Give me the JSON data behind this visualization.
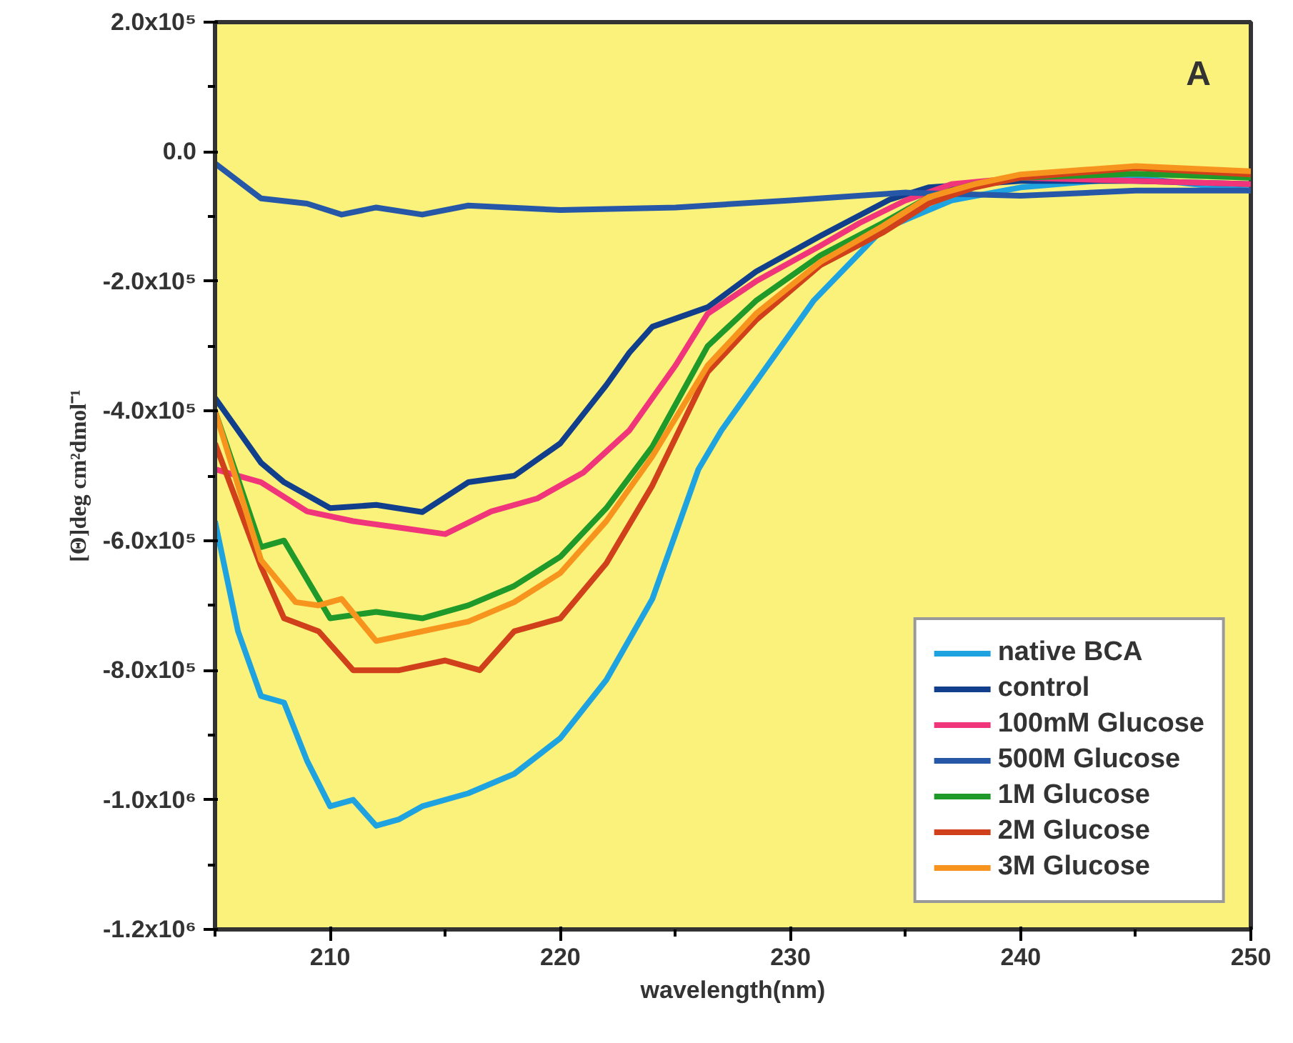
{
  "chart_data": {
    "type": "line",
    "xlabel": "wavelength(nm)",
    "ylabel": "[Θ]deg cm²dmol⁻¹",
    "annotations": [
      "A"
    ],
    "xlim": [
      205,
      250
    ],
    "ylim": [
      -1200000,
      200000
    ],
    "xticks": [
      210,
      220,
      230,
      240,
      250
    ],
    "yticks": [
      {
        "value": 200000,
        "label": "2.0x10⁵"
      },
      {
        "value": 0,
        "label": "0.0"
      },
      {
        "value": -200000,
        "label": "-2.0x10⁵"
      },
      {
        "value": -400000,
        "label": "-4.0x10⁵"
      },
      {
        "value": -600000,
        "label": "-6.0x10⁵"
      },
      {
        "value": -800000,
        "label": "-8.0x10⁵"
      },
      {
        "value": -1000000,
        "label": "-1.0x10⁶"
      },
      {
        "value": -1200000,
        "label": "-1.2x10⁶"
      }
    ],
    "grid": false,
    "legend": "bottom right",
    "marker": "none",
    "line_style": "solid",
    "series": [
      {
        "name": "native BCA",
        "color": "#1fa3e0",
        "x": [
          205,
          206,
          207,
          208,
          209,
          210,
          211,
          212,
          213,
          214,
          216,
          218,
          220,
          222,
          224,
          225,
          226,
          227,
          228,
          229,
          231,
          234,
          237,
          240,
          245,
          250
        ],
        "values": [
          -570000,
          -740000,
          -840000,
          -850000,
          -940000,
          -1010000,
          -1000000,
          -1040000,
          -1030000,
          -1010000,
          -990000,
          -960000,
          -905000,
          -815000,
          -690000,
          -590000,
          -490000,
          -430000,
          -380000,
          -330000,
          -230000,
          -120000,
          -75000,
          -55000,
          -40000,
          -60000
        ]
      },
      {
        "name": "control",
        "color": "#123f8c",
        "x": [
          205,
          207,
          208,
          210,
          212,
          214,
          216,
          218,
          220,
          222,
          223,
          224,
          226.4,
          228.5,
          231.3,
          234.3,
          236,
          238,
          240,
          245,
          250
        ],
        "values": [
          -380000,
          -480000,
          -510000,
          -550000,
          -545000,
          -556000,
          -510000,
          -500000,
          -450000,
          -360000,
          -310000,
          -270000,
          -240000,
          -185000,
          -130000,
          -74000,
          -55000,
          -50000,
          -45000,
          -45000,
          -50000
        ]
      },
      {
        "name": "100mM Glucose",
        "color": "#f0357a",
        "x": [
          205,
          207,
          209,
          211,
          213,
          215,
          217,
          219,
          221,
          223,
          225,
          226.4,
          228.5,
          231.3,
          233,
          235,
          237,
          240,
          245,
          250
        ],
        "values": [
          -490000,
          -510000,
          -555000,
          -570000,
          -580000,
          -590000,
          -555000,
          -535000,
          -495000,
          -430000,
          -330000,
          -250000,
          -200000,
          -145000,
          -110000,
          -75000,
          -50000,
          -40000,
          -45000,
          -50000
        ]
      },
      {
        "name": "500M Glucose",
        "color": "#2758a8",
        "x": [
          205,
          207,
          209,
          210.5,
          212,
          214,
          216,
          220,
          225,
          230,
          235,
          240,
          245,
          250
        ],
        "values": [
          -18000,
          -72000,
          -80000,
          -97000,
          -86000,
          -97000,
          -83000,
          -90000,
          -86000,
          -75000,
          -63000,
          -68000,
          -60000,
          -60000
        ]
      },
      {
        "name": "1M Glucose",
        "color": "#1f9a2a",
        "x": [
          205,
          207,
          208,
          210,
          212,
          214,
          216,
          218,
          220,
          222,
          224,
          226.4,
          228.5,
          231.3,
          234,
          236,
          238,
          240,
          245,
          250
        ],
        "values": [
          -400000,
          -610000,
          -600000,
          -720000,
          -710000,
          -720000,
          -700000,
          -670000,
          -625000,
          -550000,
          -455000,
          -300000,
          -230000,
          -160000,
          -110000,
          -70000,
          -50000,
          -40000,
          -34000,
          -40000
        ]
      },
      {
        "name": "2M Glucose",
        "color": "#d0401a",
        "x": [
          205,
          207,
          208,
          209.5,
          211,
          213,
          215,
          216.5,
          218,
          220,
          222,
          224,
          226.4,
          228.5,
          231.3,
          234,
          236,
          238,
          240,
          245,
          250
        ],
        "values": [
          -450000,
          -640000,
          -720000,
          -740000,
          -800000,
          -800000,
          -785000,
          -800000,
          -740000,
          -720000,
          -635000,
          -515000,
          -340000,
          -260000,
          -175000,
          -125000,
          -80000,
          -55000,
          -40000,
          -25000,
          -35000
        ]
      },
      {
        "name": "3M Glucose",
        "color": "#f7941d",
        "x": [
          205,
          207,
          208.5,
          209.5,
          210.5,
          212,
          214,
          216,
          218,
          220,
          222,
          224,
          226.4,
          228.5,
          231.3,
          234,
          236,
          238,
          240,
          245,
          250
        ],
        "values": [
          -400000,
          -630000,
          -695000,
          -700000,
          -690000,
          -755000,
          -740000,
          -725000,
          -695000,
          -650000,
          -570000,
          -470000,
          -330000,
          -250000,
          -170000,
          -115000,
          -70000,
          -50000,
          -35000,
          -22000,
          -30000
        ]
      }
    ]
  }
}
